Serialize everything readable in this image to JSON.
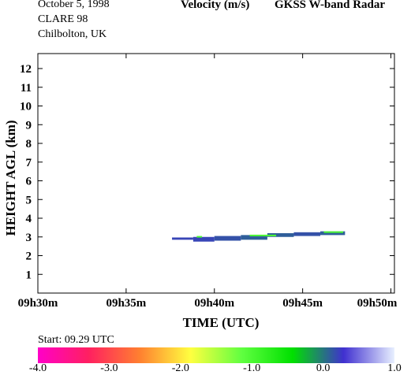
{
  "header": {
    "date": "October 5, 1998",
    "campaign": "CLARE 98",
    "site": "Chilbolton, UK",
    "quantity": "Velocity (m/s)",
    "instrument": "GKSS  W-band Radar"
  },
  "chart_data": {
    "type": "heatmap",
    "xlabel": "TIME (UTC)",
    "ylabel": "HEIGHT AGL (km)",
    "x_ticks": [
      "09h30m",
      "09h35m",
      "09h40m",
      "09h45m",
      "09h50m"
    ],
    "xlim_minutes": [
      30,
      50.2
    ],
    "ylim": [
      0,
      12.8
    ],
    "y_ticks": [
      1,
      2,
      3,
      4,
      5,
      6,
      7,
      8,
      9,
      10,
      11,
      12
    ],
    "segments": [
      {
        "t0": 37.6,
        "t1": 38.8,
        "h0": 2.85,
        "h1": 2.97,
        "v": 0.2
      },
      {
        "t0": 38.8,
        "t1": 40.0,
        "h0": 2.75,
        "h1": 3.0,
        "v": 0.2
      },
      {
        "t0": 40.0,
        "t1": 41.5,
        "h0": 2.8,
        "h1": 3.05,
        "v": 0.15
      },
      {
        "t0": 41.5,
        "t1": 43.0,
        "h0": 2.85,
        "h1": 3.1,
        "v": 0.1
      },
      {
        "t0": 43.0,
        "t1": 44.5,
        "h0": 3.0,
        "h1": 3.2,
        "v": 0.1
      },
      {
        "t0": 44.5,
        "t1": 46.0,
        "h0": 3.05,
        "h1": 3.25,
        "v": 0.15
      },
      {
        "t0": 46.0,
        "t1": 47.4,
        "h0": 3.1,
        "h1": 3.3,
        "v": 0.1
      },
      {
        "t0": 39.0,
        "t1": 39.3,
        "h0": 2.97,
        "h1": 3.05,
        "v": -1.0
      },
      {
        "t0": 42.0,
        "t1": 43.5,
        "h0": 3.05,
        "h1": 3.12,
        "v": -1.0
      },
      {
        "t0": 46.2,
        "t1": 47.3,
        "h0": 3.25,
        "h1": 3.3,
        "v": -1.0
      }
    ],
    "colorbar": {
      "min": -4.0,
      "max": 1.0,
      "tick_labels": [
        "-4.0",
        "-3.0",
        "-2.0",
        "-1.0",
        "0.0",
        "1.0"
      ],
      "stops": [
        "#ff00c8",
        "#ff2060",
        "#ff8030",
        "#ffff40",
        "#60ff40",
        "#00e000",
        "#4030d0",
        "#e8f0ff"
      ]
    }
  },
  "footer": {
    "start_label": "Start: 09.29 UTC"
  }
}
